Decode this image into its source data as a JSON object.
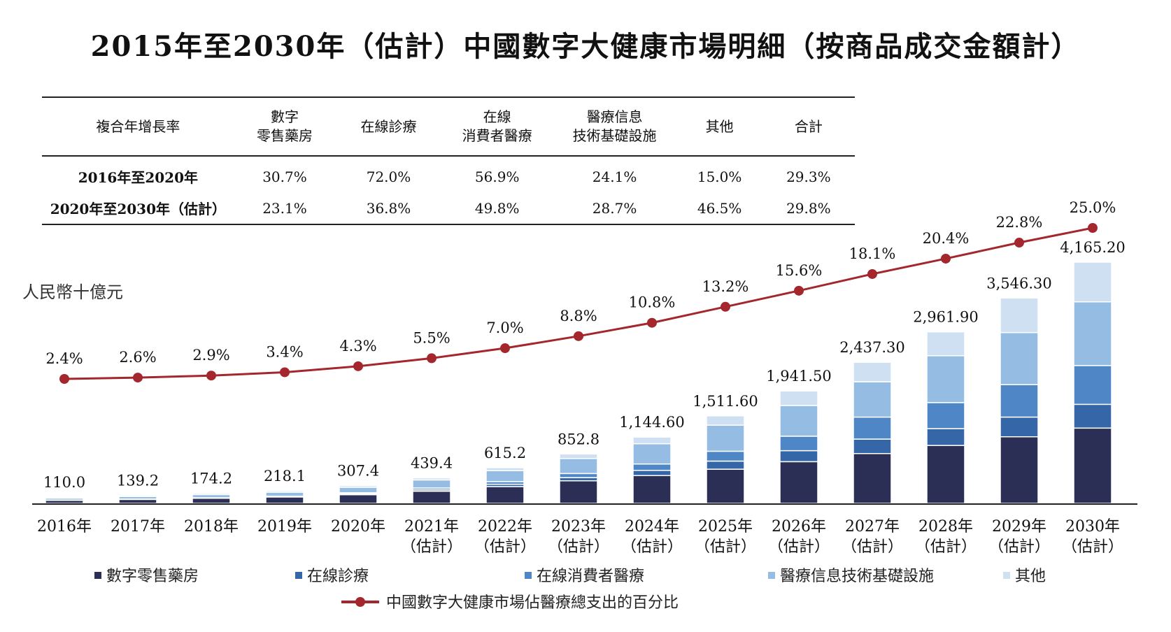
{
  "title": "2015年至2030年（估計）中國數字大健康市場明細（按商品成交金額計）",
  "cagr_table": {
    "header_label": "複合年增長率",
    "columns": [
      [
        "數字",
        "零售藥房"
      ],
      [
        "在線診療"
      ],
      [
        "在線",
        "消費者醫療"
      ],
      [
        "醫療信息",
        "技術基礎設施"
      ],
      [
        "其他"
      ],
      [
        "合計"
      ]
    ],
    "rows": [
      {
        "period": "2016年至2020年",
        "values": [
          "30.7%",
          "72.0%",
          "56.9%",
          "24.1%",
          "15.0%",
          "29.3%"
        ]
      },
      {
        "period": "2020年至2030年（估計）",
        "values": [
          "23.1%",
          "36.8%",
          "49.8%",
          "28.7%",
          "46.5%",
          "29.8%"
        ]
      }
    ]
  },
  "chart_data": {
    "type": "bar",
    "stacked": true,
    "unit_label": "人民幣十億元",
    "categories": [
      [
        "2016年"
      ],
      [
        "2017年"
      ],
      [
        "2018年"
      ],
      [
        "2019年"
      ],
      [
        "2020年"
      ],
      [
        "2021年",
        "（估計）"
      ],
      [
        "2022年",
        "（估計）"
      ],
      [
        "2023年",
        "（估計）"
      ],
      [
        "2024年",
        "（估計）"
      ],
      [
        "2025年",
        "（估計）"
      ],
      [
        "2026年",
        "（估計）"
      ],
      [
        "2027年",
        "（估計）"
      ],
      [
        "2028年",
        "（估計）"
      ],
      [
        "2029年",
        "（估計）"
      ],
      [
        "2030年",
        "（估計）"
      ]
    ],
    "total_labels": [
      "110.0",
      "139.2",
      "174.2",
      "218.1",
      "307.4",
      "439.4",
      "615.2",
      "852.8",
      "1,144.60",
      "1,511.60",
      "1,941.50",
      "2,437.30",
      "2,961.90",
      "3,546.30",
      "4,165.20"
    ],
    "totals": [
      110.0,
      139.2,
      174.2,
      218.1,
      307.4,
      439.4,
      615.2,
      852.8,
      1144.6,
      1511.6,
      1941.5,
      2437.3,
      2961.9,
      3546.3,
      4165.2
    ],
    "series": [
      {
        "name": "數字零售藥房",
        "color": "#2b2f55",
        "values": [
          52,
          68,
          88,
          110,
          150,
          210,
          290,
          390,
          480,
          590,
          720,
          860,
          1000,
          1150,
          1300
        ]
      },
      {
        "name": "在線診療",
        "color": "#3566a8",
        "values": [
          1,
          2,
          3,
          5,
          15,
          25,
          40,
          55,
          90,
          140,
          190,
          250,
          290,
          340,
          410
        ]
      },
      {
        "name": "在線消費者醫療",
        "color": "#4f86c6",
        "values": [
          3,
          4,
          6,
          8,
          18,
          30,
          45,
          70,
          110,
          170,
          250,
          380,
          450,
          560,
          670
        ]
      },
      {
        "name": "醫療信息技術基礎設施",
        "color": "#95bde4",
        "values": [
          35,
          45,
          55,
          70,
          95,
          140,
          190,
          260,
          350,
          450,
          530,
          610,
          810,
          900,
          1100
        ]
      },
      {
        "name": "其他",
        "color": "#cfe0f2",
        "values": [
          19,
          20.2,
          22.2,
          25.1,
          29.4,
          34.4,
          50.2,
          77.8,
          114.6,
          161.6,
          251.5,
          337.3,
          411.9,
          596.3,
          685.2
        ]
      }
    ],
    "line": {
      "name": "中國數字大健康市場佔醫療總支出的百分比",
      "color": "#a3272c",
      "values": [
        2.4,
        2.6,
        2.9,
        3.4,
        4.3,
        5.5,
        7.0,
        8.8,
        10.8,
        13.2,
        15.6,
        18.1,
        20.4,
        22.8,
        25.0
      ],
      "labels": [
        "2.4%",
        "2.6%",
        "2.9%",
        "3.4%",
        "4.3%",
        "5.5%",
        "7.0%",
        "8.8%",
        "10.8%",
        "13.2%",
        "15.6%",
        "18.1%",
        "20.4%",
        "22.8%",
        "25.0%"
      ]
    }
  }
}
